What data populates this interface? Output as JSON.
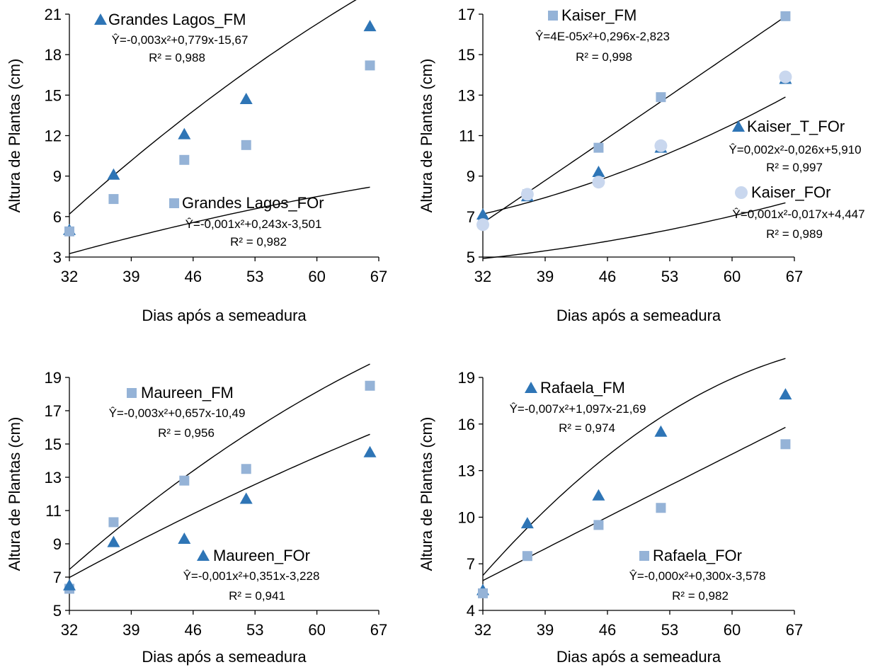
{
  "chart_data": [
    {
      "type": "scatter",
      "xlabel": "Dias após a semeadura",
      "ylabel": "Altura de Plantas (cm)",
      "xlim": [
        32,
        67
      ],
      "ylim": [
        3,
        21
      ],
      "xticks": [
        "32",
        "39",
        "46",
        "53",
        "60",
        "67"
      ],
      "yticks": [
        "3",
        "6",
        "9",
        "12",
        "15",
        "18",
        "21"
      ],
      "series": [
        {
          "name": "Grandes Lagos_FM",
          "marker": "triangle",
          "color": "#2E75B6",
          "x": [
            32,
            37,
            45,
            52,
            66
          ],
          "y": [
            5.0,
            9.1,
            12.1,
            14.7,
            20.1
          ],
          "equation": "Ŷ=-0,003x²+0,779x-15,67",
          "r2": "R² = 0,988",
          "fit": [
            -0.003,
            0.779,
            -15.67
          ]
        },
        {
          "name": "Grandes Lagos_FOr",
          "marker": "square",
          "color": "#95B3D7",
          "x": [
            32,
            37,
            45,
            52,
            66
          ],
          "y": [
            4.9,
            7.3,
            10.2,
            11.3,
            17.2
          ],
          "equation": "Ŷ=-0,001x²+0,243x-3,501",
          "r2": "R² = 0,982",
          "fit": [
            -0.001,
            0.243,
            -3.501
          ]
        }
      ]
    },
    {
      "type": "scatter",
      "xlabel": "Dias após a semeadura",
      "ylabel": "Altura de Plantas (cm)",
      "xlim": [
        32,
        67
      ],
      "ylim": [
        5,
        17
      ],
      "xticks": [
        "32",
        "39",
        "46",
        "53",
        "60",
        "67"
      ],
      "yticks": [
        "5",
        "7",
        "9",
        "11",
        "13",
        "15",
        "17"
      ],
      "series": [
        {
          "name": "Kaiser_FM",
          "marker": "square",
          "color": "#95B3D7",
          "x": [
            32,
            37,
            45,
            52,
            66
          ],
          "y": [
            6.7,
            8.1,
            10.4,
            12.9,
            16.9
          ],
          "equation": "Ŷ=4E-05x²+0,296x-2,823",
          "r2": "R² = 0,998",
          "fit": [
            4e-05,
            0.296,
            -2.823
          ]
        },
        {
          "name": "Kaiser_T_FOr",
          "marker": "triangle",
          "color": "#2E75B6",
          "x": [
            32,
            37,
            45,
            52,
            66
          ],
          "y": [
            7.1,
            8.0,
            9.2,
            10.4,
            13.8
          ],
          "equation": "Ŷ=0,002x²-0,026x+5,910",
          "r2": "R² = 0,997",
          "fit": [
            0.002,
            -0.026,
            5.91
          ]
        },
        {
          "name": "Kaiser_FOr",
          "marker": "circle",
          "color": "#C9D7EE",
          "x": [
            32,
            37,
            45,
            52,
            66
          ],
          "y": [
            6.6,
            8.1,
            8.7,
            10.5,
            13.9
          ],
          "equation": "Ŷ=0,001x²-0,017x+4,447",
          "r2": "R² = 0,989",
          "fit": [
            0.001,
            -0.017,
            4.447
          ]
        }
      ]
    },
    {
      "type": "scatter",
      "xlabel": "Dias após a semeadura",
      "ylabel": "Altura de Plantas (cm)",
      "xlim": [
        32,
        67
      ],
      "ylim": [
        5,
        19
      ],
      "xticks": [
        "32",
        "39",
        "46",
        "53",
        "60",
        "67"
      ],
      "yticks": [
        "5",
        "7",
        "9",
        "11",
        "13",
        "15",
        "17",
        "19"
      ],
      "series": [
        {
          "name": "Maureen_FM",
          "marker": "square",
          "color": "#95B3D7",
          "x": [
            32,
            37,
            45,
            52,
            66
          ],
          "y": [
            6.3,
            10.3,
            12.8,
            13.5,
            18.5
          ],
          "equation": "Ŷ=-0,003x²+0,657x-10,49",
          "r2": "R² = 0,956",
          "fit": [
            -0.003,
            0.657,
            -10.49
          ]
        },
        {
          "name": "Maureen_FOr",
          "marker": "triangle",
          "color": "#2E75B6",
          "x": [
            32,
            37,
            45,
            52,
            66
          ],
          "y": [
            6.5,
            9.1,
            9.3,
            11.7,
            14.5
          ],
          "equation": "Ŷ=-0,001x²+0,351x-3,228",
          "r2": "R² = 0,941",
          "fit": [
            -0.001,
            0.351,
            -3.228
          ]
        }
      ]
    },
    {
      "type": "scatter",
      "xlabel": "Dias após a semeadura",
      "ylabel": "Altura de Plantas (cm)",
      "xlim": [
        32,
        67
      ],
      "ylim": [
        4,
        19
      ],
      "xticks": [
        "32",
        "39",
        "46",
        "53",
        "60",
        "67"
      ],
      "yticks": [
        "4",
        "7",
        "10",
        "13",
        "16",
        "19"
      ],
      "series": [
        {
          "name": "Rafaela_FM",
          "marker": "triangle",
          "color": "#2E75B6",
          "x": [
            32,
            37,
            45,
            52,
            66
          ],
          "y": [
            5.3,
            9.6,
            11.4,
            15.5,
            17.9
          ],
          "equation": "Ŷ=-0,007x²+1,097x-21,69",
          "r2": "R² = 0,974",
          "fit": [
            -0.007,
            1.097,
            -21.69
          ]
        },
        {
          "name": "Rafaela_FOr",
          "marker": "square",
          "color": "#95B3D7",
          "x": [
            32,
            37,
            45,
            52,
            66
          ],
          "y": [
            5.1,
            7.5,
            9.5,
            10.6,
            14.7
          ],
          "equation": "Ŷ=-0,000x²+0,300x-3,578",
          "r2": "R² = 0,982",
          "fit": [
            -0.0001,
            0.3,
            -3.578
          ]
        }
      ]
    }
  ]
}
